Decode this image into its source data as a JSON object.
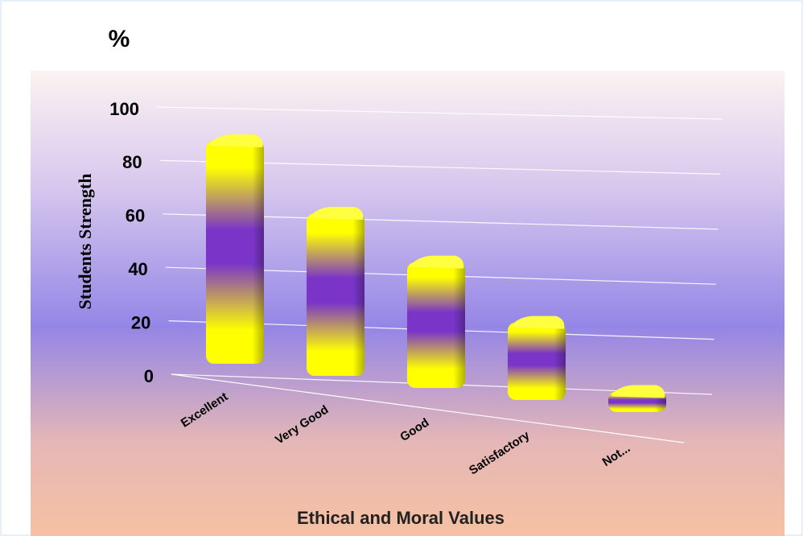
{
  "chart_data": {
    "type": "bar3d",
    "unit_label": "%",
    "ylabel": "Students Strength",
    "xlabel": "Ethical and Moral Values",
    "categories": [
      "Excellent",
      "Very Good",
      "Good",
      "Satisfactory",
      "Not..."
    ],
    "values": [
      88,
      62,
      45,
      24,
      0
    ],
    "ylim": [
      0,
      100
    ],
    "yticks": [
      0,
      20,
      40,
      60,
      80,
      100
    ],
    "grid": true,
    "colors": [
      "#ffff00",
      "#7a35c8"
    ]
  }
}
